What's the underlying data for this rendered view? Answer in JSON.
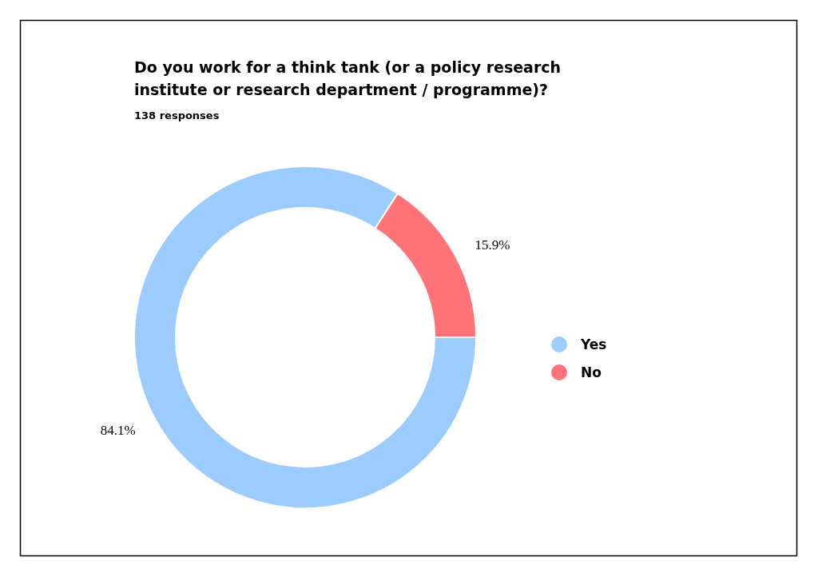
{
  "chart_data": {
    "type": "donut",
    "title": "Do you work for a think tank (or a policy research institute or research department / programme)?",
    "subtitle": "138 responses",
    "categories": [
      "Yes",
      "No"
    ],
    "values": [
      84.1,
      15.9
    ],
    "colors": [
      "#9ccbfd",
      "#fe7377"
    ],
    "value_labels": [
      "84.1%",
      "15.9%"
    ],
    "legend": "right"
  }
}
